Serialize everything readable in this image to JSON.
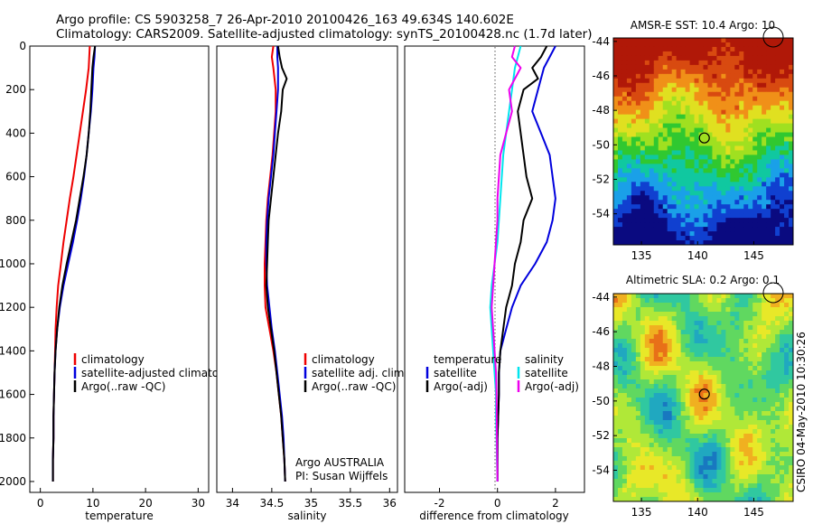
{
  "header": {
    "line1": "Argo profile: CS 5903258_7 26-Apr-2010 20100426_163 49.634S 140.602E",
    "line2": "Climatology: CARS2009. Satellite-adjusted climatology: synTS_20100428.nc (1.7d later)"
  },
  "side_text": "CSIRO 04-May-2010 10:30:26",
  "colors": {
    "red": "#ee0000",
    "blue": "#0000dd",
    "black": "#000000",
    "cyan": "#00e5ee",
    "magenta": "#ee00ee"
  },
  "chart_data": [
    {
      "id": "temperature",
      "type": "line",
      "xlabel": "temperature",
      "xlim": [
        -2,
        32
      ],
      "xticks": [
        "0",
        "10",
        "20",
        "30"
      ],
      "ylim": [
        2050,
        0
      ],
      "yticks": [
        "0",
        "200",
        "400",
        "600",
        "800",
        "1000",
        "1200",
        "1400",
        "1600",
        "1800",
        "2000"
      ],
      "legend": [
        "climatology",
        "satellite-adjusted climatology",
        "Argo(..raw -QC)"
      ],
      "legend_position": "lower-middle",
      "series": [
        {
          "name": "climatology",
          "color": "red",
          "points": [
            [
              9.4,
              0
            ],
            [
              9.2,
              100
            ],
            [
              8.7,
              200
            ],
            [
              8.1,
              300
            ],
            [
              7.5,
              400
            ],
            [
              6.9,
              500
            ],
            [
              6.3,
              600
            ],
            [
              5.6,
              700
            ],
            [
              5.0,
              800
            ],
            [
              4.4,
              900
            ],
            [
              3.9,
              1000
            ],
            [
              3.4,
              1100
            ],
            [
              3.1,
              1200
            ],
            [
              2.9,
              1300
            ],
            [
              2.8,
              1400
            ],
            [
              2.7,
              1500
            ],
            [
              2.6,
              1600
            ],
            [
              2.5,
              1700
            ],
            [
              2.5,
              1800
            ],
            [
              2.4,
              1900
            ],
            [
              2.4,
              2000
            ]
          ]
        },
        {
          "name": "satellite-adjusted climatology",
          "color": "blue",
          "points": [
            [
              10.4,
              0
            ],
            [
              10.3,
              50
            ],
            [
              10.1,
              100
            ],
            [
              9.9,
              200
            ],
            [
              9.6,
              300
            ],
            [
              9.2,
              400
            ],
            [
              8.8,
              500
            ],
            [
              8.3,
              600
            ],
            [
              7.7,
              700
            ],
            [
              7.0,
              800
            ],
            [
              6.2,
              900
            ],
            [
              5.3,
              1000
            ],
            [
              4.4,
              1100
            ],
            [
              3.7,
              1200
            ],
            [
              3.2,
              1300
            ],
            [
              2.9,
              1400
            ],
            [
              2.7,
              1500
            ],
            [
              2.6,
              1600
            ],
            [
              2.5,
              1700
            ],
            [
              2.5,
              1800
            ],
            [
              2.4,
              1900
            ],
            [
              2.4,
              2000
            ]
          ]
        },
        {
          "name": "Argo(..raw -QC)",
          "color": "black",
          "points": [
            [
              10.4,
              0
            ],
            [
              10.1,
              50
            ],
            [
              9.9,
              100
            ],
            [
              9.7,
              200
            ],
            [
              9.5,
              300
            ],
            [
              9.2,
              400
            ],
            [
              8.8,
              500
            ],
            [
              8.2,
              600
            ],
            [
              7.5,
              700
            ],
            [
              6.8,
              800
            ],
            [
              5.9,
              900
            ],
            [
              5.0,
              1000
            ],
            [
              4.2,
              1100
            ],
            [
              3.6,
              1200
            ],
            [
              3.2,
              1300
            ],
            [
              2.9,
              1400
            ],
            [
              2.7,
              1500
            ],
            [
              2.6,
              1600
            ],
            [
              2.5,
              1700
            ],
            [
              2.5,
              1800
            ],
            [
              2.4,
              1900
            ],
            [
              2.4,
              2000
            ]
          ]
        }
      ]
    },
    {
      "id": "salinity",
      "type": "line",
      "xlabel": "salinity",
      "xlim": [
        33.8,
        36.1
      ],
      "xticks": [
        "34",
        "34.5",
        "35",
        "35.5",
        "36"
      ],
      "ylim": [
        2050,
        0
      ],
      "legend": [
        "climatology",
        "satellite adj. clim.",
        "Argo(..raw -QC)"
      ],
      "legend_position": "lower-right",
      "annotation": [
        "Argo AUSTRALIA",
        "PI: Susan Wijffels"
      ],
      "series": [
        {
          "name": "climatology",
          "color": "red",
          "points": [
            [
              34.52,
              0
            ],
            [
              34.5,
              50
            ],
            [
              34.52,
              100
            ],
            [
              34.55,
              200
            ],
            [
              34.55,
              300
            ],
            [
              34.53,
              400
            ],
            [
              34.51,
              500
            ],
            [
              34.48,
              600
            ],
            [
              34.45,
              700
            ],
            [
              34.43,
              800
            ],
            [
              34.42,
              900
            ],
            [
              34.41,
              1000
            ],
            [
              34.41,
              1100
            ],
            [
              34.42,
              1200
            ],
            [
              34.47,
              1300
            ],
            [
              34.52,
              1400
            ],
            [
              34.56,
              1500
            ],
            [
              34.59,
              1600
            ],
            [
              34.62,
              1700
            ],
            [
              34.64,
              1800
            ],
            [
              34.66,
              1900
            ],
            [
              34.67,
              2000
            ]
          ]
        },
        {
          "name": "satellite adj. clim.",
          "color": "blue",
          "points": [
            [
              34.57,
              0
            ],
            [
              34.57,
              50
            ],
            [
              34.58,
              100
            ],
            [
              34.58,
              200
            ],
            [
              34.56,
              300
            ],
            [
              34.54,
              400
            ],
            [
              34.52,
              500
            ],
            [
              34.49,
              600
            ],
            [
              34.46,
              700
            ],
            [
              34.44,
              800
            ],
            [
              34.43,
              900
            ],
            [
              34.43,
              1000
            ],
            [
              34.44,
              1100
            ],
            [
              34.47,
              1200
            ],
            [
              34.5,
              1300
            ],
            [
              34.54,
              1400
            ],
            [
              34.57,
              1500
            ],
            [
              34.6,
              1600
            ],
            [
              34.63,
              1700
            ],
            [
              34.65,
              1800
            ],
            [
              34.66,
              1900
            ],
            [
              34.67,
              2000
            ]
          ]
        },
        {
          "name": "Argo(..raw -QC)",
          "color": "black",
          "points": [
            [
              34.58,
              0
            ],
            [
              34.6,
              50
            ],
            [
              34.63,
              100
            ],
            [
              34.69,
              150
            ],
            [
              34.64,
              200
            ],
            [
              34.62,
              300
            ],
            [
              34.58,
              400
            ],
            [
              34.55,
              500
            ],
            [
              34.52,
              600
            ],
            [
              34.49,
              700
            ],
            [
              34.46,
              800
            ],
            [
              34.45,
              900
            ],
            [
              34.44,
              1000
            ],
            [
              34.43,
              1100
            ],
            [
              34.45,
              1200
            ],
            [
              34.49,
              1300
            ],
            [
              34.53,
              1400
            ],
            [
              34.56,
              1500
            ],
            [
              34.59,
              1600
            ],
            [
              34.62,
              1700
            ],
            [
              34.64,
              1800
            ],
            [
              34.66,
              1900
            ],
            [
              34.67,
              2000
            ]
          ]
        }
      ]
    },
    {
      "id": "difference",
      "type": "line",
      "xlabel": "difference from climatology",
      "xlim": [
        -3.2,
        3.0
      ],
      "xticks": [
        "-2",
        "0",
        "2"
      ],
      "ylim": [
        2050,
        0
      ],
      "legend_temperature": [
        "temperature",
        "satellite",
        "Argo(-adj)"
      ],
      "legend_salinity": [
        "salinity",
        "satellite",
        "Argo(-adj)"
      ],
      "legend_position": "lower-middle",
      "series": [
        {
          "name": "temperature satellite",
          "color": "blue",
          "points": [
            [
              2.0,
              0
            ],
            [
              1.6,
              100
            ],
            [
              1.4,
              200
            ],
            [
              1.2,
              300
            ],
            [
              1.5,
              400
            ],
            [
              1.8,
              500
            ],
            [
              1.9,
              600
            ],
            [
              2.0,
              700
            ],
            [
              1.9,
              800
            ],
            [
              1.7,
              900
            ],
            [
              1.3,
              1000
            ],
            [
              0.8,
              1100
            ],
            [
              0.5,
              1200
            ],
            [
              0.3,
              1300
            ],
            [
              0.1,
              1400
            ],
            [
              0.05,
              1500
            ],
            [
              0.05,
              1600
            ],
            [
              0.0,
              1800
            ],
            [
              0.0,
              2000
            ]
          ]
        },
        {
          "name": "temperature Argo(-adj)",
          "color": "black",
          "points": [
            [
              1.7,
              0
            ],
            [
              1.5,
              50
            ],
            [
              1.2,
              100
            ],
            [
              1.4,
              150
            ],
            [
              0.9,
              200
            ],
            [
              0.7,
              300
            ],
            [
              0.8,
              400
            ],
            [
              0.9,
              500
            ],
            [
              1.0,
              600
            ],
            [
              1.2,
              700
            ],
            [
              0.9,
              800
            ],
            [
              0.8,
              900
            ],
            [
              0.6,
              1000
            ],
            [
              0.5,
              1100
            ],
            [
              0.3,
              1200
            ],
            [
              0.2,
              1300
            ],
            [
              0.1,
              1400
            ],
            [
              0.05,
              1500
            ],
            [
              0.05,
              1600
            ],
            [
              0.0,
              1800
            ],
            [
              0.0,
              2000
            ]
          ]
        },
        {
          "name": "salinity satellite",
          "color": "cyan",
          "points": [
            [
              0.8,
              0
            ],
            [
              0.6,
              100
            ],
            [
              0.5,
              200
            ],
            [
              0.4,
              300
            ],
            [
              0.3,
              400
            ],
            [
              0.2,
              500
            ],
            [
              0.15,
              600
            ],
            [
              0.1,
              700
            ],
            [
              0.05,
              800
            ],
            [
              0.0,
              900
            ],
            [
              -0.1,
              1000
            ],
            [
              -0.2,
              1100
            ],
            [
              -0.25,
              1200
            ],
            [
              -0.2,
              1300
            ],
            [
              -0.15,
              1400
            ],
            [
              -0.1,
              1500
            ],
            [
              -0.05,
              1600
            ],
            [
              -0.05,
              1700
            ],
            [
              -0.03,
              1800
            ],
            [
              -0.02,
              1900
            ],
            [
              0.0,
              2000
            ]
          ]
        },
        {
          "name": "salinity Argo(-adj)",
          "color": "magenta",
          "points": [
            [
              0.6,
              0
            ],
            [
              0.5,
              50
            ],
            [
              0.8,
              100
            ],
            [
              0.6,
              150
            ],
            [
              0.4,
              200
            ],
            [
              0.5,
              300
            ],
            [
              0.3,
              400
            ],
            [
              0.1,
              500
            ],
            [
              0.05,
              600
            ],
            [
              0.0,
              700
            ],
            [
              0.0,
              800
            ],
            [
              -0.05,
              900
            ],
            [
              -0.1,
              1000
            ],
            [
              -0.15,
              1100
            ],
            [
              -0.2,
              1200
            ],
            [
              -0.15,
              1300
            ],
            [
              -0.1,
              1400
            ],
            [
              -0.05,
              1500
            ],
            [
              -0.03,
              1600
            ],
            [
              -0.02,
              1800
            ],
            [
              0.0,
              2000
            ]
          ]
        }
      ]
    },
    {
      "id": "sst_map",
      "type": "heatmap",
      "title": "AMSR-E SST: 10.4 Argo: 10",
      "xticks": [
        "135",
        "140",
        "145"
      ],
      "yticks": [
        "-44",
        "-46",
        "-48",
        "-50",
        "-52",
        "-54"
      ],
      "xlim": [
        132.5,
        148.5
      ],
      "ylim": [
        -55.8,
        -43.8
      ],
      "argo_position": [
        140.6,
        -49.6
      ],
      "palette": [
        "#0a0a80",
        "#1040d0",
        "#1aa0e8",
        "#10c8a0",
        "#30c830",
        "#a0e020",
        "#e0e020",
        "#f09018",
        "#d84a10",
        "#b01808"
      ]
    },
    {
      "id": "sla_map",
      "type": "heatmap",
      "title": "Altimetric SLA: 0.2 Argo: 0.1",
      "xticks": [
        "135",
        "140",
        "145"
      ],
      "yticks": [
        "-44",
        "-46",
        "-48",
        "-50",
        "-52",
        "-54"
      ],
      "xlim": [
        132.5,
        148.5
      ],
      "ylim": [
        -55.8,
        -43.8
      ],
      "argo_position": [
        140.6,
        -49.6
      ],
      "palette": [
        "#1878c0",
        "#20a8c0",
        "#30c8a0",
        "#60d860",
        "#b0e838",
        "#e8e828",
        "#f0b020",
        "#e87018"
      ]
    }
  ]
}
